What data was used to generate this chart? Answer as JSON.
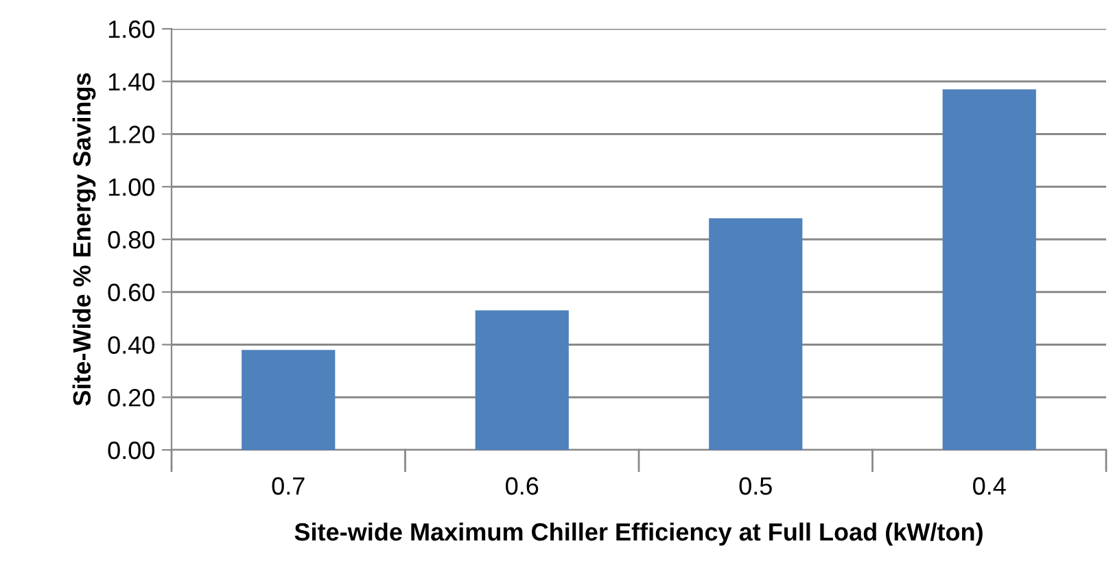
{
  "chart_data": {
    "type": "bar",
    "xlabel": "Site-wide Maximum Chiller Efficiency at Full Load (kW/ton)",
    "ylabel": "Site-Wide % Energy Savings",
    "categories": [
      "0.7",
      "0.6",
      "0.5",
      "0.4"
    ],
    "values": [
      0.38,
      0.53,
      0.88,
      1.37
    ],
    "color": "#4f81bd",
    "ylim": [
      0,
      1.6
    ],
    "yticks": [
      {
        "value": 0,
        "label": "0.00"
      },
      {
        "value": 0.2,
        "label": "0.20"
      },
      {
        "value": 0.4,
        "label": "0.40"
      },
      {
        "value": 0.6,
        "label": "0.60"
      },
      {
        "value": 0.8,
        "label": "0.80"
      },
      {
        "value": 1.0,
        "label": "1.00"
      },
      {
        "value": 1.2,
        "label": "1.20"
      },
      {
        "value": 1.4,
        "label": "1.40"
      },
      {
        "value": 1.6,
        "label": "1.60"
      }
    ],
    "grid": "y",
    "legend": false
  }
}
